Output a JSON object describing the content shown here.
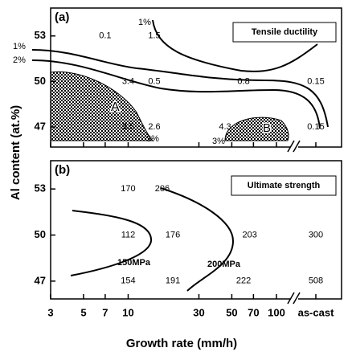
{
  "x_axis": {
    "label": "Growth rate (mm/h)",
    "xlim": [
      3,
      130
    ],
    "log": true,
    "xticks": [
      3,
      5,
      7,
      10,
      30,
      50,
      70,
      100
    ],
    "extra_category": "as-cast"
  },
  "y_axis_label": "Al content (at.%)",
  "chart_data": [
    {
      "type": "contour",
      "panel_label": "(a)",
      "legend": "Tensile ductility",
      "ylim": [
        45.68,
        54.84
      ],
      "yticks": [
        47,
        50,
        53
      ],
      "points": {
        "x": [
          7,
          15,
          10,
          15,
          60,
          "as-cast",
          10,
          15,
          45,
          "as-cast"
        ],
        "y": [
          53,
          53,
          50,
          50,
          50,
          50,
          47,
          47,
          47,
          47
        ],
        "values": [
          0.1,
          1.5,
          3.4,
          0.5,
          0.8,
          0.15,
          3.5,
          2.6,
          4.3,
          0.15
        ]
      },
      "contour_labels": [
        "1%",
        "1%",
        "2%",
        "3%",
        "3%"
      ],
      "region_labels": [
        "A",
        "B"
      ]
    },
    {
      "type": "contour",
      "panel_label": "(b)",
      "legend": "Ultimate strength",
      "ylim": [
        45.84,
        54.84
      ],
      "yticks": [
        47,
        50,
        53
      ],
      "points": {
        "x": [
          10,
          17,
          10,
          20,
          66,
          "as-cast",
          10,
          20,
          60,
          "as-cast"
        ],
        "y": [
          53,
          53,
          50,
          50,
          50,
          50,
          47,
          47,
          47,
          47
        ],
        "values": [
          170,
          206,
          112,
          176,
          203,
          300,
          154,
          191,
          222,
          508
        ]
      },
      "contour_labels": [
        "150MPa",
        "200MPa"
      ]
    }
  ]
}
